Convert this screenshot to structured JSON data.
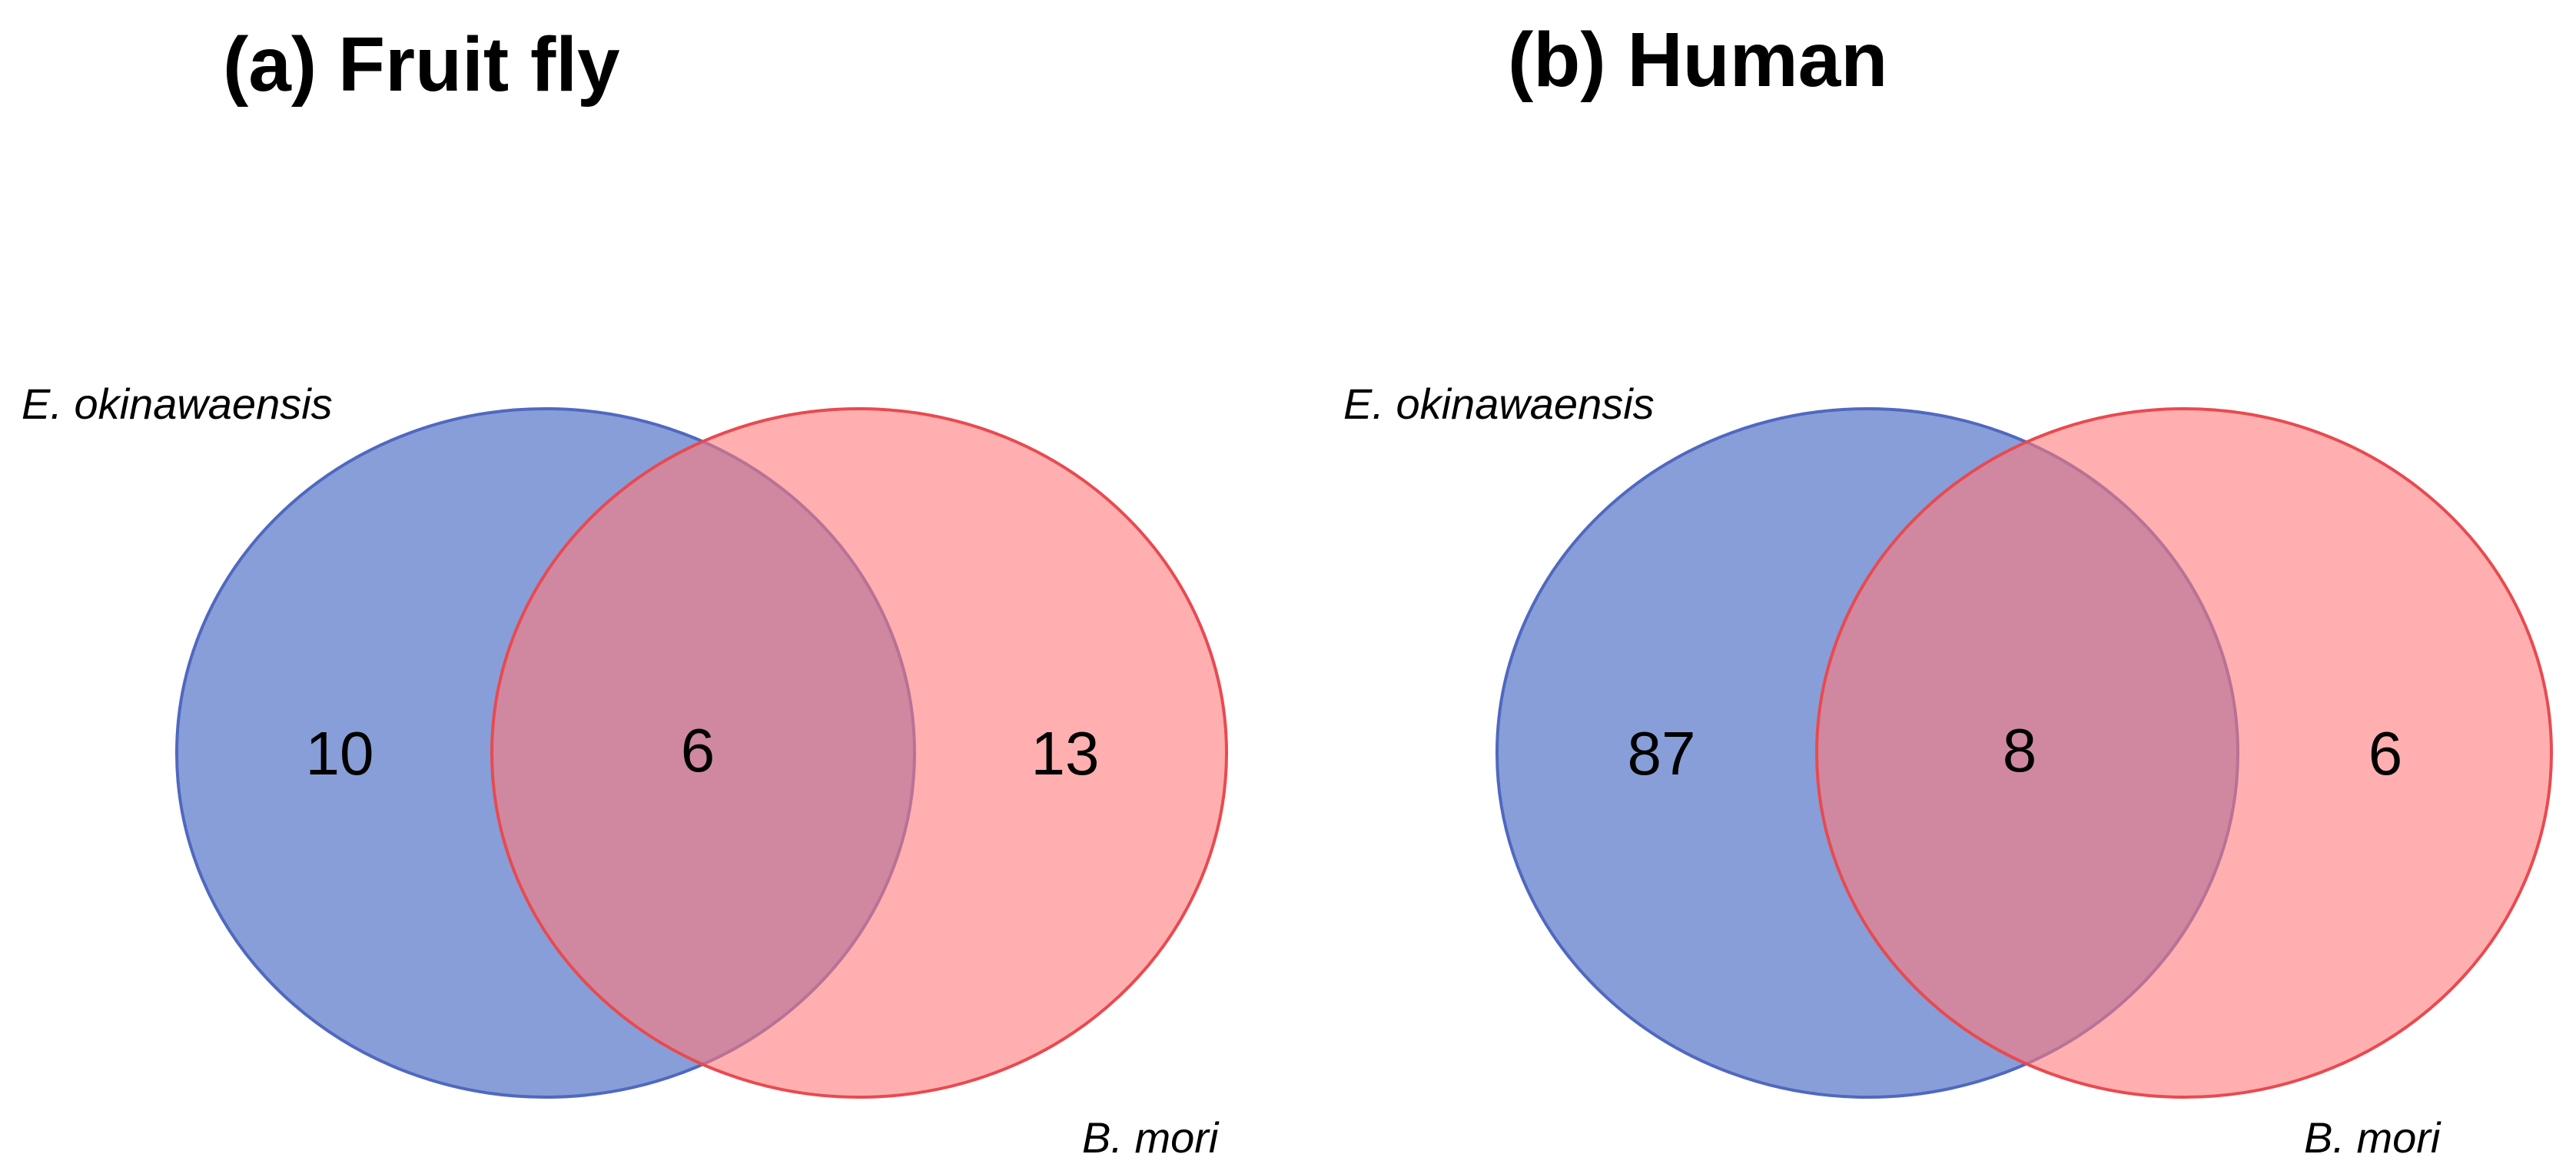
{
  "colors": {
    "set_a_fill": "#7b93d4",
    "set_a_stroke": "#5068c0",
    "set_b_fill": "#ff7a7a",
    "set_b_stroke": "#e84a50",
    "background": "#ffffff"
  },
  "panels": [
    {
      "title": "(a) Fruit fly",
      "set_a": {
        "label": "E. okinawaensis",
        "only_count": "10"
      },
      "set_b": {
        "label": "B. mori",
        "only_count": "13"
      },
      "intersection_count": "6"
    },
    {
      "title": "(b) Human",
      "set_a": {
        "label": "E. okinawaensis",
        "only_count": "87"
      },
      "set_b": {
        "label": "B. mori",
        "only_count": "6"
      },
      "intersection_count": "8"
    }
  ]
}
